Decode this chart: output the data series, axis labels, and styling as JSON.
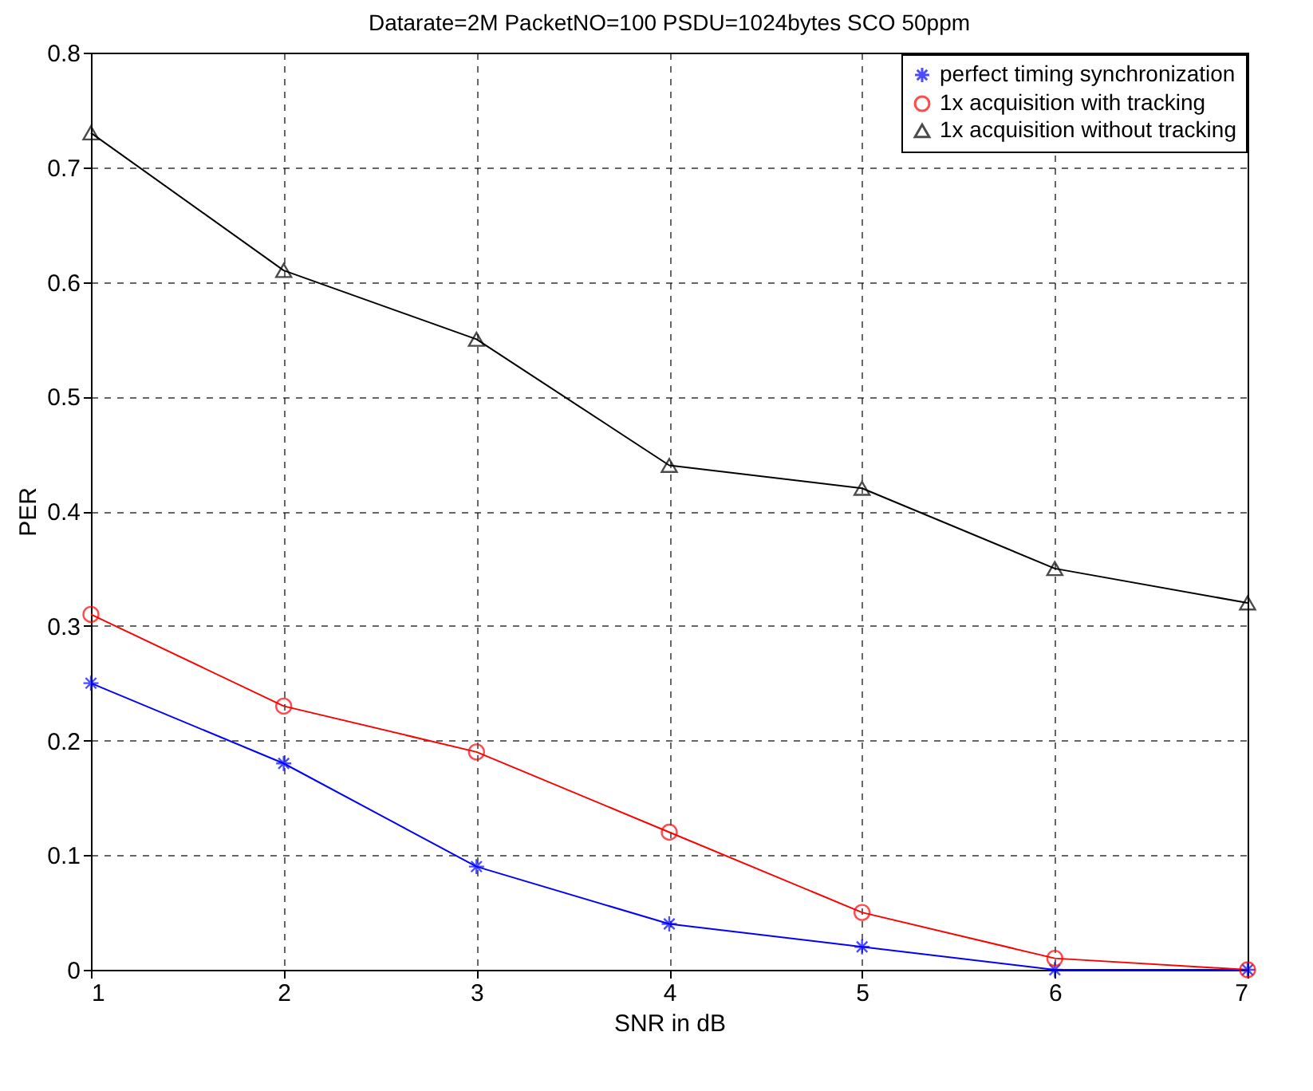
{
  "chart_data": {
    "type": "line",
    "title": "Datarate=2M PacketNO=100 PSDU=1024bytes SCO 50ppm",
    "xlabel": "SNR in dB",
    "ylabel": "PER",
    "x": [
      1,
      2,
      3,
      4,
      5,
      6,
      7
    ],
    "series": [
      {
        "name": "perfect timing synchronization",
        "color": "#0000ff",
        "marker": "cross",
        "values": [
          0.25,
          0.18,
          0.09,
          0.04,
          0.02,
          0,
          0
        ]
      },
      {
        "name": "1x acquisition with tracking",
        "color": "#ff0000",
        "marker": "circle",
        "values": [
          0.31,
          0.23,
          0.19,
          0.12,
          0.05,
          0.01,
          0
        ]
      },
      {
        "name": "1x acquisition without tracking",
        "color": "#000000",
        "marker": "triangle",
        "values": [
          0.73,
          0.61,
          0.55,
          0.44,
          0.42,
          0.35,
          0.32
        ]
      }
    ],
    "xlim": [
      1,
      7
    ],
    "xticks": [
      1,
      2,
      3,
      4,
      5,
      6,
      7
    ],
    "ylim": [
      0,
      0.8
    ],
    "yticks": [
      0,
      0.1,
      0.2,
      0.3,
      0.4,
      0.5,
      0.6,
      0.7,
      0.8
    ],
    "grid": true,
    "legend": "top right"
  }
}
